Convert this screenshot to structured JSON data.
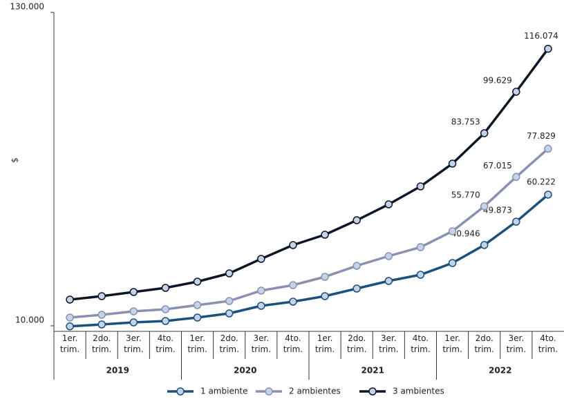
{
  "chart_data": {
    "type": "line",
    "ylabel": "$",
    "categories": [
      "1er. trim.",
      "2do. trim.",
      "3er. trim.",
      "4to. trim.",
      "1er. trim.",
      "2do. trim.",
      "3er. trim.",
      "4to. trim.",
      "1er. trim.",
      "2do. trim.",
      "3er. trim.",
      "4to. trim.",
      "1er. trim.",
      "2do. trim.",
      "3er. trim.",
      "4to. trim."
    ],
    "groups": [
      "2019",
      "2020",
      "2021",
      "2022"
    ],
    "ylim": [
      10000,
      130000
    ],
    "yticks": [
      {
        "value": 10000,
        "label": "10.000"
      },
      {
        "value": 130000,
        "label": "130.000"
      }
    ],
    "series": [
      {
        "name": "1 ambiente",
        "color": "#1b4f7c",
        "values": [
          9800,
          10529,
          11322,
          11850,
          13172,
          14757,
          17665,
          19251,
          21366,
          24273,
          27181,
          29560,
          34053,
          40946,
          49873,
          60222
        ],
        "value_labels": [
          null,
          null,
          null,
          null,
          null,
          null,
          null,
          null,
          null,
          null,
          null,
          null,
          null,
          "40.946",
          "49.873",
          "60.222"
        ]
      },
      {
        "name": "2 ambientes",
        "color": "#8a91b0",
        "values": [
          13172,
          14229,
          15550,
          16343,
          17929,
          19515,
          23480,
          25594,
          28766,
          32994,
          36695,
          40131,
          46210,
          55770,
          67015,
          77829
        ],
        "value_labels": [
          null,
          null,
          null,
          null,
          null,
          null,
          null,
          null,
          null,
          null,
          null,
          null,
          null,
          "55.770",
          "67.015",
          "77.829"
        ]
      },
      {
        "name": "3 ambientes",
        "color": "#0d1626",
        "values": [
          20044,
          21366,
          22952,
          24537,
          26916,
          30088,
          35638,
          40924,
          44888,
          50439,
          56518,
          63390,
          72112,
          83753,
          99629,
          116074
        ],
        "value_labels": [
          null,
          null,
          null,
          null,
          null,
          null,
          null,
          null,
          null,
          null,
          null,
          null,
          null,
          "83.753",
          "99.629",
          "116.074"
        ]
      }
    ],
    "marker_fill": "#c5d3e8"
  }
}
